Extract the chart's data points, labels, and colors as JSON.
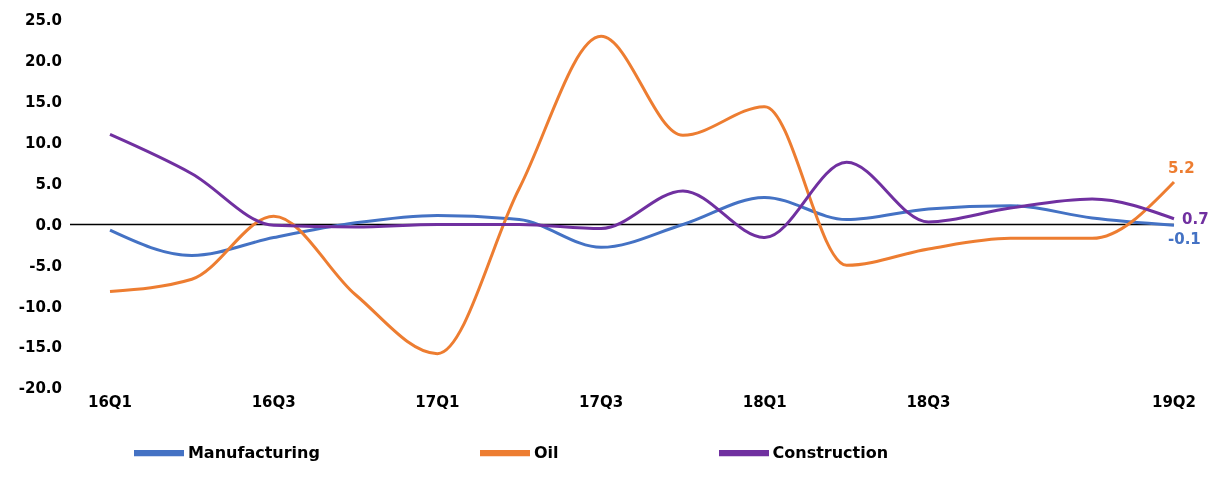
{
  "chart_data": {
    "type": "line",
    "categories": [
      "16Q1",
      null,
      "16Q3",
      null,
      "17Q1",
      null,
      "17Q3",
      null,
      "18Q1",
      null,
      "18Q3",
      null,
      null,
      "19Q2"
    ],
    "series": [
      {
        "name": "Manufacturing",
        "color": "#4472c4",
        "values": [
          -0.7,
          -3.8,
          -1.6,
          0.2,
          1.1,
          0.6,
          -2.8,
          0,
          3.3,
          0.6,
          1.9,
          2.3,
          0.8,
          -0.1
        ],
        "value_labels": [
          null,
          null,
          null,
          null,
          null,
          null,
          null,
          null,
          null,
          null,
          null,
          null,
          null,
          "-0.1"
        ]
      },
      {
        "name": "Oil",
        "color": "#ed7d31",
        "values": [
          -8.2,
          -6.7,
          1.0,
          -8.6,
          -15.8,
          4.4,
          23.0,
          10.9,
          14.4,
          -5.0,
          -3.0,
          -1.7,
          -1.7,
          5.2
        ],
        "value_labels": [
          null,
          null,
          null,
          null,
          null,
          null,
          null,
          null,
          null,
          null,
          null,
          null,
          null,
          "5.2"
        ]
      },
      {
        "name": "Construction",
        "color": "#7030a0",
        "values": [
          11.0,
          6.2,
          -0.1,
          -0.3,
          0,
          0,
          -0.5,
          4.1,
          -1.6,
          7.6,
          0.3,
          2.0,
          3.1,
          0.7
        ],
        "value_labels": [
          null,
          null,
          null,
          null,
          null,
          null,
          null,
          null,
          null,
          null,
          null,
          null,
          null,
          "0.7"
        ]
      }
    ],
    "ylim": [
      -20,
      25
    ],
    "yticks": [
      {
        "value": -20,
        "label": "-20.0"
      },
      {
        "value": -15,
        "label": "-15.0"
      },
      {
        "value": -10,
        "label": "-10.0"
      },
      {
        "value": -5,
        "label": "-5.0"
      },
      {
        "value": 0,
        "label": "0.0"
      },
      {
        "value": 5,
        "label": "5.0"
      },
      {
        "value": 10,
        "label": "10.0"
      },
      {
        "value": 15,
        "label": "15.0"
      },
      {
        "value": 20,
        "label": "20.0"
      },
      {
        "value": 25,
        "label": "25.0"
      }
    ],
    "ref_lines": [
      {
        "axis": "y",
        "value": 0,
        "color": "#000000"
      }
    ],
    "grid": false,
    "legend": "bottom",
    "marker": "none",
    "line_style": "solid"
  }
}
